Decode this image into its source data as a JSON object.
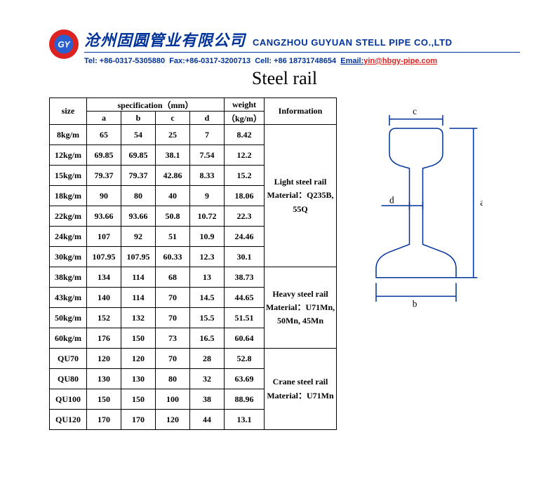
{
  "header": {
    "company_cn": "沧州固圆管业有限公司",
    "company_en": "CANGZHOU GUYUAN STELL PIPE CO.,LTD",
    "tel": "+86-0317-5305880",
    "fax": "+86-0317-3200713",
    "cell": "+86 18731748654",
    "email_label": "Email:",
    "email": "yin@hbgy-pipe.com"
  },
  "title": "Steel rail",
  "table": {
    "headers": {
      "size": "size",
      "spec": "specification（mm）",
      "a": "a",
      "b": "b",
      "c": "c",
      "d": "d",
      "weight_l1": "weight",
      "weight_l2": "（kg/m）",
      "info": "Information"
    },
    "groups": [
      {
        "info_lines": [
          "Light steel rail",
          "Material：Q235B,",
          "55Q"
        ],
        "rows": [
          {
            "size": "8kg/m",
            "a": "65",
            "b": "54",
            "c": "25",
            "d": "7",
            "w": "8.42"
          },
          {
            "size": "12kg/m",
            "a": "69.85",
            "b": "69.85",
            "c": "38.1",
            "d": "7.54",
            "w": "12.2"
          },
          {
            "size": "15kg/m",
            "a": "79.37",
            "b": "79.37",
            "c": "42.86",
            "d": "8.33",
            "w": "15.2"
          },
          {
            "size": "18kg/m",
            "a": "90",
            "b": "80",
            "c": "40",
            "d": "9",
            "w": "18.06"
          },
          {
            "size": "22kg/m",
            "a": "93.66",
            "b": "93.66",
            "c": "50.8",
            "d": "10.72",
            "w": "22.3"
          },
          {
            "size": "24kg/m",
            "a": "107",
            "b": "92",
            "c": "51",
            "d": "10.9",
            "w": "24.46"
          },
          {
            "size": "30kg/m",
            "a": "107.95",
            "b": "107.95",
            "c": "60.33",
            "d": "12.3",
            "w": "30.1"
          }
        ]
      },
      {
        "info_lines": [
          "Heavy steel rail",
          "Material：U71Mn,",
          "50Mn, 45Mn"
        ],
        "rows": [
          {
            "size": "38kg/m",
            "a": "134",
            "b": "114",
            "c": "68",
            "d": "13",
            "w": "38.73"
          },
          {
            "size": "43kg/m",
            "a": "140",
            "b": "114",
            "c": "70",
            "d": "14.5",
            "w": "44.65"
          },
          {
            "size": "50kg/m",
            "a": "152",
            "b": "132",
            "c": "70",
            "d": "15.5",
            "w": "51.51"
          },
          {
            "size": "60kg/m",
            "a": "176",
            "b": "150",
            "c": "73",
            "d": "16.5",
            "w": "60.64"
          }
        ]
      },
      {
        "info_lines": [
          "Crane steel rail",
          "Material：U71Mn"
        ],
        "rows": [
          {
            "size": "QU70",
            "a": "120",
            "b": "120",
            "c": "70",
            "d": "28",
            "w": "52.8"
          },
          {
            "size": "QU80",
            "a": "130",
            "b": "130",
            "c": "80",
            "d": "32",
            "w": "63.69"
          },
          {
            "size": "QU100",
            "a": "150",
            "b": "150",
            "c": "100",
            "d": "38",
            "w": "88.96"
          },
          {
            "size": "QU120",
            "a": "170",
            "b": "170",
            "c": "120",
            "d": "44",
            "w": "13.1"
          }
        ]
      }
    ]
  },
  "diagram": {
    "labels": {
      "a": "a",
      "b": "b",
      "c": "c",
      "d": "d"
    },
    "stroke": "#003399",
    "fontsize": 14
  }
}
